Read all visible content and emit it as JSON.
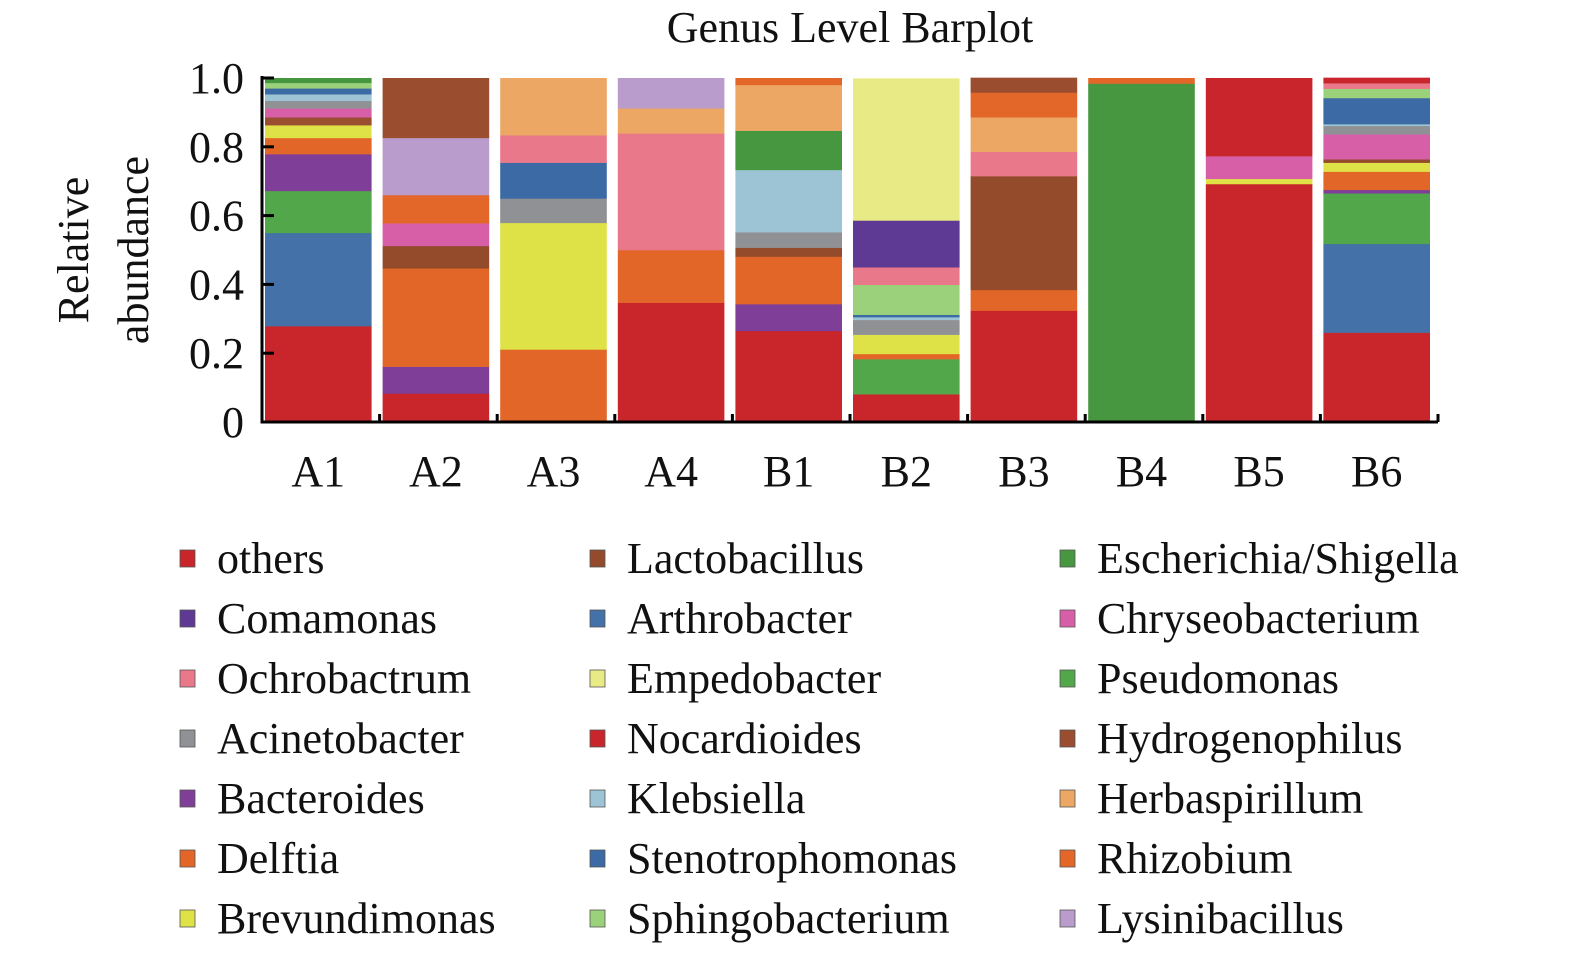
{
  "chart_data": {
    "type": "bar",
    "stacked": true,
    "title": "Genus Level Barplot",
    "xlabel": "",
    "ylabel": "Relative abundance",
    "ylim": [
      0,
      1.0
    ],
    "yticks": [
      "0",
      "0.2",
      "0.4",
      "0.6",
      "0.8",
      "1.0"
    ],
    "grid": false,
    "legend_position": "bottom",
    "categories": [
      "A1",
      "A2",
      "A3",
      "A4",
      "B1",
      "B2",
      "B3",
      "B4",
      "B5",
      "B6"
    ],
    "legend": [
      {
        "name": "others",
        "color": "#c9262b"
      },
      {
        "name": "Comamonas",
        "color": "#5e3a94"
      },
      {
        "name": "Ochrobactrum",
        "color": "#e8788a"
      },
      {
        "name": "Acinetobacter",
        "color": "#909194"
      },
      {
        "name": "Bacteroides",
        "color": "#7f3f98"
      },
      {
        "name": "Delftia",
        "color": "#e26627"
      },
      {
        "name": "Brevundimonas",
        "color": "#dfe246"
      },
      {
        "name": "Lactobacillus",
        "color": "#934b2b"
      },
      {
        "name": "Arthrobacter",
        "color": "#4471a8"
      },
      {
        "name": "Empedobacter",
        "color": "#e8ea86"
      },
      {
        "name": "Nocardioides",
        "color": "#c8262c"
      },
      {
        "name": "Klebsiella",
        "color": "#9cc4d4"
      },
      {
        "name": "Stenotrophomonas",
        "color": "#3b6aa5"
      },
      {
        "name": "Sphingobacterium",
        "color": "#9ad17a"
      },
      {
        "name": "Escherichia/Shigella",
        "color": "#46973f"
      },
      {
        "name": "Chryseobacterium",
        "color": "#d65fa8"
      },
      {
        "name": "Pseudomonas",
        "color": "#52a74a"
      },
      {
        "name": "Hydrogenophilus",
        "color": "#9a4d2f"
      },
      {
        "name": "Herbaspirillum",
        "color": "#eba763"
      },
      {
        "name": "Rhizobium",
        "color": "#e4672a"
      },
      {
        "name": "Lysinibacillus",
        "color": "#b99ccc"
      }
    ],
    "stacks": {
      "A1": [
        [
          "others",
          0.279
        ],
        [
          "Arthrobacter",
          0.271
        ],
        [
          "Pseudomonas",
          0.122
        ],
        [
          "Bacteroides",
          0.107
        ],
        [
          "Delftia",
          0.047
        ],
        [
          "Brevundimonas",
          0.037
        ],
        [
          "Hydrogenophilus",
          0.023
        ],
        [
          "Chryseobacterium",
          0.026
        ],
        [
          "Acinetobacter",
          0.022
        ],
        [
          "Klebsiella",
          0.019
        ],
        [
          "Stenotrophomonas",
          0.017
        ],
        [
          "Sphingobacterium",
          0.016
        ],
        [
          "Escherichia/Shigella",
          0.014
        ]
      ],
      "A2": [
        [
          "others",
          0.083
        ],
        [
          "Bacteroides",
          0.078
        ],
        [
          "Delftia",
          0.286
        ],
        [
          "Lactobacillus",
          0.065
        ],
        [
          "Chryseobacterium",
          0.066
        ],
        [
          "Rhizobium",
          0.082
        ],
        [
          "Lysinibacillus",
          0.166
        ],
        [
          "Hydrogenophilus",
          0.174
        ]
      ],
      "A3": [
        [
          "Delftia",
          0.211
        ],
        [
          "Brevundimonas",
          0.368
        ],
        [
          "Acinetobacter",
          0.071
        ],
        [
          "Stenotrophomonas",
          0.104
        ],
        [
          "Ochrobactrum",
          0.08
        ],
        [
          "Herbaspirillum",
          0.166
        ]
      ],
      "A4": [
        [
          "others",
          0.347
        ],
        [
          "Delftia",
          0.153
        ],
        [
          "Ochrobactrum",
          0.339
        ],
        [
          "Herbaspirillum",
          0.073
        ],
        [
          "Lysinibacillus",
          0.088
        ]
      ],
      "B1": [
        [
          "others",
          0.265
        ],
        [
          "Bacteroides",
          0.078
        ],
        [
          "Delftia",
          0.138
        ],
        [
          "Lactobacillus",
          0.026
        ],
        [
          "Acinetobacter",
          0.045
        ],
        [
          "Klebsiella",
          0.181
        ],
        [
          "Escherichia/Shigella",
          0.114
        ],
        [
          "Herbaspirillum",
          0.133
        ],
        [
          "Rhizobium",
          0.02
        ]
      ],
      "B2": [
        [
          "others",
          0.081
        ],
        [
          "Pseudomonas",
          0.102
        ],
        [
          "Delftia",
          0.015
        ],
        [
          "Brevundimonas",
          0.056
        ],
        [
          "Acinetobacter",
          0.043
        ],
        [
          "Klebsiella",
          0.008
        ],
        [
          "Stenotrophomonas",
          0.007
        ],
        [
          "Sphingobacterium",
          0.087
        ],
        [
          "Ochrobactrum",
          0.051
        ],
        [
          "Comamonas",
          0.136
        ],
        [
          "Empedobacter",
          0.413
        ]
      ],
      "B3": [
        [
          "others",
          0.324
        ],
        [
          "Delftia",
          0.06
        ],
        [
          "Lactobacillus",
          0.331
        ],
        [
          "Ochrobactrum",
          0.071
        ],
        [
          "Herbaspirillum",
          0.1
        ],
        [
          "Rhizobium",
          0.072
        ],
        [
          "Hydrogenophilus",
          0.043
        ]
      ],
      "B4": [
        [
          "Escherichia/Shigella",
          0.984
        ],
        [
          "Rhizobium",
          0.016
        ]
      ],
      "B5": [
        [
          "others",
          0.692
        ],
        [
          "Brevundimonas",
          0.015
        ],
        [
          "Chryseobacterium",
          0.066
        ],
        [
          "Nocardioides",
          0.227
        ]
      ],
      "B6": [
        [
          "others",
          0.26
        ],
        [
          "Arthrobacter",
          0.258
        ],
        [
          "Pseudomonas",
          0.147
        ],
        [
          "Bacteroides",
          0.01
        ],
        [
          "Delftia",
          0.053
        ],
        [
          "Brevundimonas",
          0.026
        ],
        [
          "Lactobacillus",
          0.01
        ],
        [
          "Chryseobacterium",
          0.073
        ],
        [
          "Acinetobacter",
          0.024
        ],
        [
          "Klebsiella",
          0.005
        ],
        [
          "Stenotrophomonas",
          0.076
        ],
        [
          "Sphingobacterium",
          0.027
        ],
        [
          "Ochrobactrum",
          0.016
        ],
        [
          "Nocardioides",
          0.016
        ]
      ]
    }
  }
}
